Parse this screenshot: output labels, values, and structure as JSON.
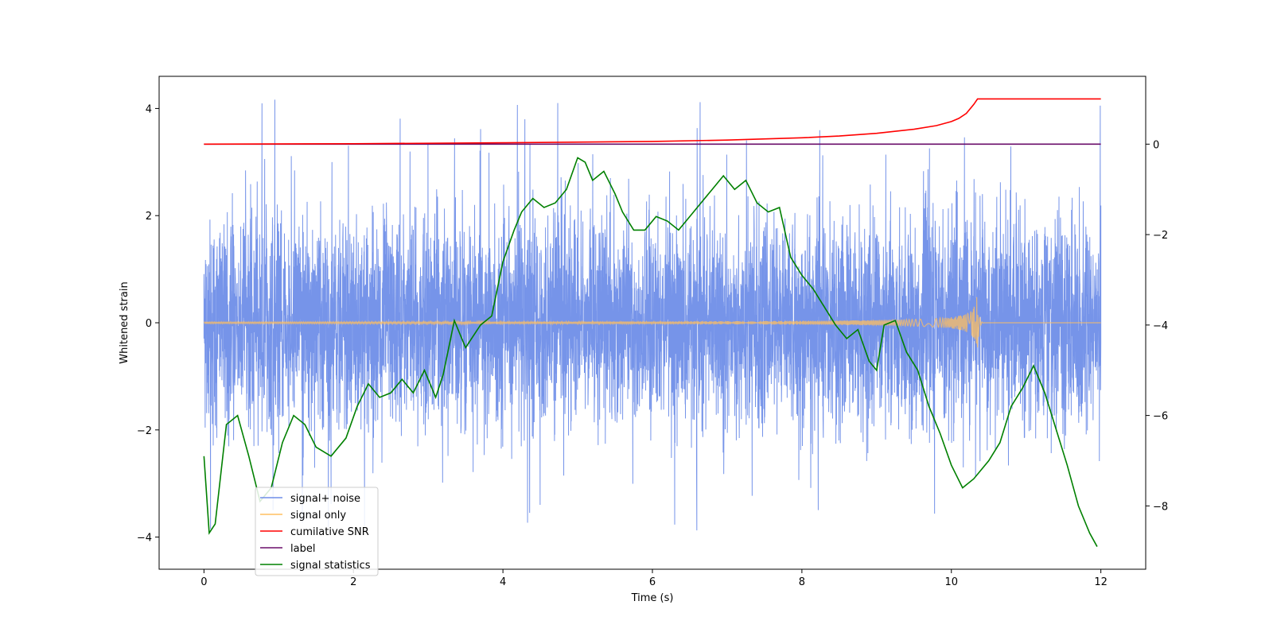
{
  "chart_data": {
    "type": "line",
    "xlabel": "Time (s)",
    "ylabel": "Whitened strain",
    "xlim": [
      -0.6,
      12.6
    ],
    "ylim_left": [
      -4.6,
      4.6
    ],
    "ylim_right": [
      -9.4,
      1.5
    ],
    "x_ticks": [
      0,
      2,
      4,
      6,
      8,
      10,
      12
    ],
    "y_ticks_left": [
      -4,
      -2,
      0,
      2,
      4
    ],
    "y_ticks_right": [
      -8,
      -6,
      -4,
      -2,
      0
    ],
    "legend_position": "lower-left",
    "series": [
      {
        "name": "signal+ noise",
        "axis": "left",
        "color": "#6f8ee8",
        "description_shape": "dense noise approx 0 mean, std ~1, spikes to about +-4",
        "x_range": [
          0,
          12
        ],
        "envelope": [
          -4.2,
          4.2
        ]
      },
      {
        "name": "signal only",
        "axis": "left",
        "color": "#ffbf60",
        "x_range": [
          0,
          12
        ],
        "chirp_peak_time": 10.35,
        "chirp_peak_amplitude": 0.62
      },
      {
        "name": "cumilative SNR",
        "axis": "right",
        "color": "#ff0000",
        "x": [
          0,
          2,
          4,
          6,
          7,
          8,
          8.5,
          9,
          9.5,
          9.8,
          10,
          10.1,
          10.2,
          10.3,
          10.35,
          10.4,
          12
        ],
        "y": [
          0,
          0.01,
          0.03,
          0.06,
          0.09,
          0.14,
          0.18,
          0.24,
          0.33,
          0.41,
          0.5,
          0.57,
          0.68,
          0.88,
          1.0,
          1.0,
          1.0
        ]
      },
      {
        "name": "label",
        "axis": "right",
        "color": "#6a0d6a",
        "x": [
          0,
          12
        ],
        "y": [
          0,
          0
        ]
      },
      {
        "name": "signal statistics",
        "axis": "right",
        "color": "#008000",
        "x": [
          0,
          0.07,
          0.15,
          0.3,
          0.45,
          0.6,
          0.75,
          0.9,
          1.05,
          1.2,
          1.35,
          1.5,
          1.7,
          1.9,
          2.05,
          2.2,
          2.35,
          2.5,
          2.65,
          2.8,
          2.95,
          3.1,
          3.2,
          3.35,
          3.5,
          3.7,
          3.85,
          4.0,
          4.15,
          4.25,
          4.4,
          4.55,
          4.7,
          4.85,
          5.0,
          5.1,
          5.2,
          5.35,
          5.5,
          5.6,
          5.75,
          5.9,
          6.05,
          6.2,
          6.35,
          6.5,
          6.65,
          6.8,
          6.95,
          7.1,
          7.25,
          7.4,
          7.55,
          7.7,
          7.85,
          8.0,
          8.15,
          8.3,
          8.45,
          8.6,
          8.75,
          8.9,
          9.0,
          9.1,
          9.25,
          9.4,
          9.55,
          9.7,
          9.85,
          10.0,
          10.15,
          10.3,
          10.5,
          10.65,
          10.8,
          10.95,
          11.1,
          11.25,
          11.4,
          11.55,
          11.7,
          11.85,
          11.95
        ],
        "y": [
          -6.9,
          -8.6,
          -8.4,
          -6.2,
          -6.0,
          -6.9,
          -7.9,
          -7.6,
          -6.6,
          -6.0,
          -6.2,
          -6.7,
          -6.9,
          -6.5,
          -5.8,
          -5.3,
          -5.6,
          -5.5,
          -5.2,
          -5.5,
          -5.0,
          -5.6,
          -5.1,
          -3.9,
          -4.5,
          -4.0,
          -3.8,
          -2.6,
          -1.9,
          -1.5,
          -1.2,
          -1.4,
          -1.3,
          -1.0,
          -0.3,
          -0.4,
          -0.8,
          -0.6,
          -1.1,
          -1.5,
          -1.9,
          -1.9,
          -1.6,
          -1.7,
          -1.9,
          -1.6,
          -1.3,
          -1.0,
          -0.7,
          -1.0,
          -0.8,
          -1.3,
          -1.5,
          -1.4,
          -2.5,
          -2.9,
          -3.2,
          -3.6,
          -4.0,
          -4.3,
          -4.1,
          -4.8,
          -5.0,
          -4.0,
          -3.9,
          -4.6,
          -5.0,
          -5.8,
          -6.4,
          -7.1,
          -7.6,
          -7.4,
          -7.0,
          -6.6,
          -5.8,
          -5.4,
          -4.9,
          -5.5,
          -6.3,
          -7.1,
          -8.0,
          -8.6,
          -8.9
        ]
      }
    ]
  }
}
